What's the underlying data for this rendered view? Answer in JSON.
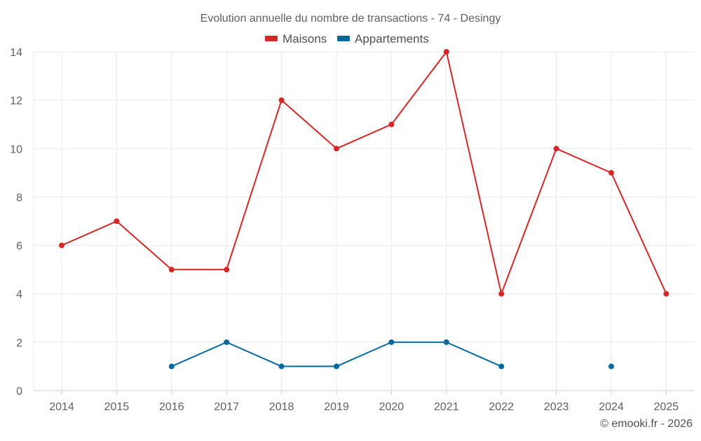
{
  "chart_data": {
    "type": "line",
    "title": "Evolution annuelle du nombre de transactions - 74 - Desingy",
    "categories": [
      "2014",
      "2015",
      "2016",
      "2017",
      "2018",
      "2019",
      "2020",
      "2021",
      "2022",
      "2023",
      "2024",
      "2025"
    ],
    "ylim": [
      0,
      14
    ],
    "yticks": [
      0,
      2,
      4,
      6,
      8,
      10,
      12,
      14
    ],
    "grid": true,
    "legend_position": "top-center",
    "series": [
      {
        "name": "Maisons",
        "color": "#d62728",
        "values": [
          6,
          7,
          5,
          5,
          12,
          10,
          11,
          14,
          4,
          10,
          9,
          4
        ]
      },
      {
        "name": "Appartements",
        "color": "#05699e",
        "values": [
          null,
          null,
          1,
          2,
          1,
          1,
          2,
          2,
          1,
          null,
          1,
          null
        ]
      }
    ]
  },
  "credit": "© emooki.fr - 2026"
}
